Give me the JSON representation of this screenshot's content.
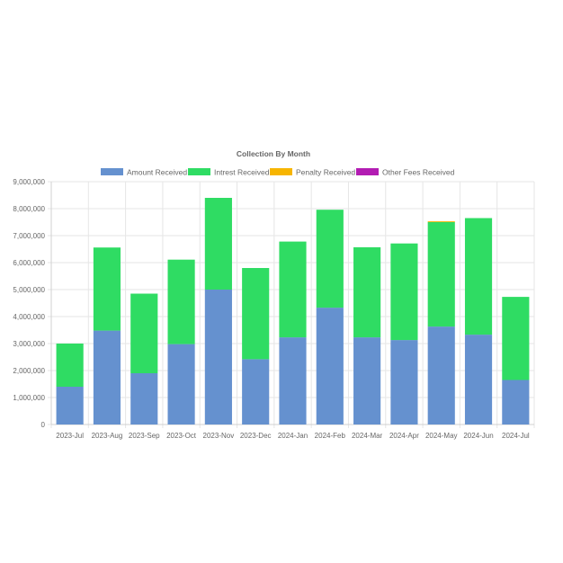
{
  "chart_data": {
    "type": "bar",
    "stacked": true,
    "title": "Collection By Month",
    "xlabel": "",
    "ylabel": "",
    "categories": [
      "2023-Jul",
      "2023-Aug",
      "2023-Sep",
      "2023-Oct",
      "2023-Nov",
      "2023-Dec",
      "2024-Jan",
      "2024-Feb",
      "2024-Mar",
      "2024-Apr",
      "2024-May",
      "2024-Jun",
      "2024-Jul"
    ],
    "ylim": [
      0,
      9000000
    ],
    "y_ticks": [
      "0",
      "1,000,000",
      "2,000,000",
      "3,000,000",
      "4,000,000",
      "5,000,000",
      "6,000,000",
      "7,000,000",
      "8,000,000",
      "9,000,000"
    ],
    "legend_position": "top",
    "grid": true,
    "series": [
      {
        "name": "Amount Received",
        "color": "#6591cf",
        "values": [
          1400000,
          3480000,
          1900000,
          2980000,
          5000000,
          2420000,
          3230000,
          4330000,
          3230000,
          3130000,
          3630000,
          3330000,
          1650000
        ]
      },
      {
        "name": "Intrest Received",
        "color": "#2fdc63",
        "values": [
          1600000,
          3080000,
          2950000,
          3130000,
          3400000,
          3380000,
          3550000,
          3630000,
          3340000,
          3580000,
          3870000,
          4320000,
          3080000
        ]
      },
      {
        "name": "Penalty Received",
        "color": "#f7b500",
        "values": [
          0,
          0,
          0,
          0,
          0,
          0,
          0,
          0,
          0,
          0,
          30000,
          0,
          0
        ]
      },
      {
        "name": "Other Fees Received",
        "color": "#b21cb2",
        "values": [
          0,
          0,
          0,
          0,
          0,
          0,
          0,
          0,
          0,
          0,
          0,
          0,
          0
        ]
      }
    ]
  }
}
